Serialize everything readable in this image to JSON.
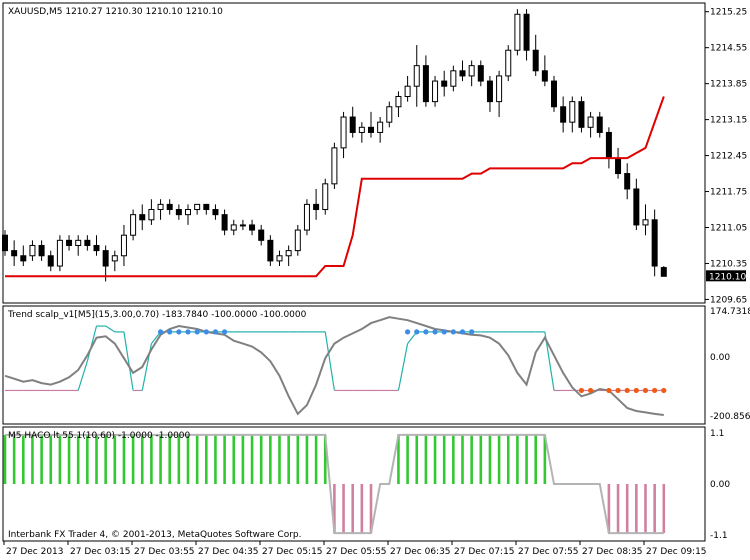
{
  "colors": {
    "background": "#ffffff",
    "border": "#000000",
    "candle": "#000000",
    "supertrend": "#e00000",
    "scalp_line": "#808080",
    "scalp_up": "#20b2aa",
    "scalp_down": "#c77da0",
    "dot_up": "#3c8ce8",
    "dot_down": "#f05a14",
    "hist_up": "#32c832",
    "hist_down": "#d080a0",
    "hist_flat": "#b4b4b4"
  },
  "main": {
    "title": "XAUUSD,M5  1210.27 1210.30 1210.10 1210.10",
    "price_labels": [
      "1215.25",
      "1214.55",
      "1213.85",
      "1213.15",
      "1212.45",
      "1211.75",
      "1211.05",
      "1210.35",
      "1209.65"
    ],
    "current_price": "1210.10"
  },
  "scalp": {
    "title": "Trend scalp_v1[M5](15,3.00,0.70) -183.7840 -100.0000 -100.0000",
    "axis_labels": [
      "174.7318",
      "0.00",
      "-200.8562"
    ]
  },
  "haco": {
    "title": "M5 HACO lt 55.1(10,60) -1.0000 -1.0000",
    "axis_labels": [
      "1.1",
      "0.00",
      "-1.1"
    ],
    "copyright": "Interbank FX Trader 4, © 2001-2013, MetaQuotes Software Corp."
  },
  "time_labels": [
    "27 Dec 2013",
    "27 Dec 03:15",
    "27 Dec 03:55",
    "27 Dec 04:35",
    "27 Dec 05:15",
    "27 Dec 05:55",
    "27 Dec 06:35",
    "27 Dec 07:15",
    "27 Dec 07:55",
    "27 Dec 08:35",
    "27 Dec 09:15"
  ],
  "chart_data": [
    {
      "type": "candlestick",
      "symbol": "XAUUSD",
      "timeframe": "M5",
      "ylim": [
        1209.6,
        1215.4
      ],
      "ohlc": [
        [
          1210.9,
          1211.0,
          1210.5,
          1210.6
        ],
        [
          1210.6,
          1210.8,
          1210.3,
          1210.5
        ],
        [
          1210.5,
          1210.7,
          1210.3,
          1210.4
        ],
        [
          1210.5,
          1210.8,
          1210.4,
          1210.7
        ],
        [
          1210.7,
          1210.8,
          1210.4,
          1210.5
        ],
        [
          1210.5,
          1210.6,
          1210.2,
          1210.3
        ],
        [
          1210.3,
          1210.9,
          1210.2,
          1210.8
        ],
        [
          1210.8,
          1210.9,
          1210.6,
          1210.7
        ],
        [
          1210.7,
          1210.9,
          1210.5,
          1210.8
        ],
        [
          1210.8,
          1210.9,
          1210.6,
          1210.7
        ],
        [
          1210.7,
          1210.9,
          1210.5,
          1210.6
        ],
        [
          1210.6,
          1210.7,
          1210.0,
          1210.3
        ],
        [
          1210.4,
          1210.6,
          1210.2,
          1210.5
        ],
        [
          1210.5,
          1211.1,
          1210.3,
          1210.9
        ],
        [
          1210.9,
          1211.4,
          1210.8,
          1211.3
        ],
        [
          1211.3,
          1211.5,
          1211.0,
          1211.2
        ],
        [
          1211.2,
          1211.6,
          1211.1,
          1211.4
        ],
        [
          1211.4,
          1211.6,
          1211.2,
          1211.5
        ],
        [
          1211.5,
          1211.6,
          1211.3,
          1211.4
        ],
        [
          1211.4,
          1211.5,
          1211.2,
          1211.3
        ],
        [
          1211.3,
          1211.5,
          1211.1,
          1211.4
        ],
        [
          1211.4,
          1211.5,
          1211.3,
          1211.5
        ],
        [
          1211.5,
          1211.5,
          1211.3,
          1211.4
        ],
        [
          1211.4,
          1211.5,
          1211.2,
          1211.3
        ],
        [
          1211.3,
          1211.4,
          1210.9,
          1211.0
        ],
        [
          1211.0,
          1211.2,
          1210.9,
          1211.1
        ],
        [
          1211.1,
          1211.2,
          1211.0,
          1211.1
        ],
        [
          1211.1,
          1211.2,
          1210.9,
          1211.0
        ],
        [
          1211.0,
          1211.1,
          1210.7,
          1210.8
        ],
        [
          1210.8,
          1210.9,
          1210.3,
          1210.4
        ],
        [
          1210.4,
          1210.6,
          1210.3,
          1210.5
        ],
        [
          1210.5,
          1210.7,
          1210.3,
          1210.6
        ],
        [
          1210.6,
          1211.1,
          1210.5,
          1211.0
        ],
        [
          1211.0,
          1211.6,
          1210.9,
          1211.5
        ],
        [
          1211.5,
          1211.8,
          1211.2,
          1211.4
        ],
        [
          1211.4,
          1212.0,
          1211.3,
          1211.9
        ],
        [
          1211.9,
          1212.7,
          1211.8,
          1212.6
        ],
        [
          1212.6,
          1213.3,
          1212.4,
          1213.2
        ],
        [
          1213.2,
          1213.4,
          1212.8,
          1212.9
        ],
        [
          1212.9,
          1213.1,
          1212.7,
          1213.0
        ],
        [
          1213.0,
          1213.3,
          1212.8,
          1212.9
        ],
        [
          1212.9,
          1213.2,
          1212.7,
          1213.1
        ],
        [
          1213.1,
          1213.5,
          1213.0,
          1213.4
        ],
        [
          1213.4,
          1213.7,
          1213.2,
          1213.6
        ],
        [
          1213.6,
          1214.0,
          1213.5,
          1213.8
        ],
        [
          1213.8,
          1214.6,
          1213.4,
          1214.2
        ],
        [
          1214.2,
          1214.4,
          1213.4,
          1213.5
        ],
        [
          1213.5,
          1214.0,
          1213.4,
          1213.9
        ],
        [
          1213.9,
          1214.1,
          1213.6,
          1213.8
        ],
        [
          1213.8,
          1214.2,
          1213.7,
          1214.1
        ],
        [
          1214.1,
          1214.3,
          1213.9,
          1214.0
        ],
        [
          1214.0,
          1214.3,
          1213.8,
          1214.2
        ],
        [
          1214.2,
          1214.3,
          1213.8,
          1213.9
        ],
        [
          1213.9,
          1214.0,
          1213.3,
          1213.5
        ],
        [
          1213.5,
          1214.1,
          1213.2,
          1214.0
        ],
        [
          1214.0,
          1214.6,
          1213.9,
          1214.5
        ],
        [
          1214.5,
          1215.3,
          1214.4,
          1215.2
        ],
        [
          1215.2,
          1215.3,
          1214.3,
          1214.5
        ],
        [
          1214.5,
          1214.8,
          1214.0,
          1214.1
        ],
        [
          1214.1,
          1214.4,
          1213.8,
          1213.9
        ],
        [
          1213.9,
          1214.0,
          1213.3,
          1213.4
        ],
        [
          1213.4,
          1213.6,
          1212.9,
          1213.1
        ],
        [
          1213.1,
          1213.6,
          1212.9,
          1213.5
        ],
        [
          1213.5,
          1213.6,
          1212.9,
          1213.0
        ],
        [
          1213.0,
          1213.3,
          1212.8,
          1213.2
        ],
        [
          1213.2,
          1213.3,
          1212.8,
          1212.9
        ],
        [
          1212.9,
          1213.0,
          1212.2,
          1212.4
        ],
        [
          1212.4,
          1212.6,
          1212.0,
          1212.1
        ],
        [
          1212.1,
          1212.3,
          1211.6,
          1211.8
        ],
        [
          1211.8,
          1212.0,
          1211.0,
          1211.1
        ],
        [
          1211.1,
          1211.5,
          1210.9,
          1211.2
        ],
        [
          1211.2,
          1211.4,
          1210.1,
          1210.3
        ],
        [
          1210.27,
          1210.3,
          1210.1,
          1210.1
        ]
      ],
      "supertrend": [
        1210.1,
        1210.1,
        1210.1,
        1210.1,
        1210.1,
        1210.1,
        1210.1,
        1210.1,
        1210.1,
        1210.1,
        1210.1,
        1210.1,
        1210.1,
        1210.1,
        1210.1,
        1210.1,
        1210.1,
        1210.1,
        1210.1,
        1210.1,
        1210.1,
        1210.1,
        1210.1,
        1210.1,
        1210.1,
        1210.1,
        1210.1,
        1210.1,
        1210.1,
        1210.1,
        1210.1,
        1210.1,
        1210.1,
        1210.1,
        1210.1,
        1210.3,
        1210.3,
        1210.3,
        1210.9,
        1212.0,
        1212.0,
        1212.0,
        1212.0,
        1212.0,
        1212.0,
        1212.0,
        1212.0,
        1212.0,
        1212.0,
        1212.0,
        1212.0,
        1212.1,
        1212.1,
        1212.2,
        1212.2,
        1212.2,
        1212.2,
        1212.2,
        1212.2,
        1212.2,
        1212.2,
        1212.2,
        1212.3,
        1212.3,
        1212.4,
        1212.4,
        1212.4,
        1212.4,
        1212.4,
        1212.5,
        1212.6,
        1213.1,
        1213.6
      ]
    },
    {
      "type": "line",
      "name": "Trend scalp_v1",
      "ylim": [
        -200.8562,
        174.7318
      ],
      "values": [
        -100,
        -100,
        -100,
        -100,
        -100,
        -100,
        -100,
        -100,
        -100,
        0,
        120,
        120,
        100,
        100,
        -100,
        -100,
        60,
        100,
        100,
        100,
        100,
        100,
        100,
        100,
        100,
        100,
        100,
        100,
        100,
        100,
        100,
        100,
        100,
        100,
        100,
        100,
        -100,
        -100,
        -100,
        -100,
        -100,
        -100,
        -100,
        -100,
        60,
        100,
        100,
        100,
        100,
        100,
        100,
        100,
        100,
        100,
        100,
        100,
        100,
        100,
        100,
        100,
        -100,
        -100,
        -100,
        -100,
        -100,
        -100,
        -100,
        -100,
        -100,
        -100,
        -100,
        -100,
        -100
      ],
      "raw": [
        -50,
        -60,
        -70,
        -65,
        -75,
        -80,
        -70,
        -55,
        -30,
        20,
        80,
        85,
        60,
        10,
        -40,
        -20,
        40,
        90,
        110,
        120,
        115,
        110,
        100,
        95,
        90,
        70,
        60,
        50,
        30,
        0,
        -50,
        -120,
        -180,
        -150,
        -80,
        10,
        60,
        80,
        95,
        110,
        130,
        140,
        150,
        145,
        140,
        130,
        120,
        110,
        105,
        100,
        95,
        90,
        88,
        80,
        60,
        20,
        -40,
        -80,
        30,
        80,
        20,
        -40,
        -90,
        -120,
        -110,
        -95,
        -100,
        -130,
        -160,
        -170,
        -175,
        -180,
        -183.784
      ]
    },
    {
      "type": "bar",
      "name": "M5 HACO lt 55.1",
      "ylim": [
        -1.1,
        1.1
      ],
      "values": [
        1,
        1,
        1,
        1,
        1,
        1,
        1,
        1,
        1,
        1,
        1,
        1,
        1,
        1,
        1,
        1,
        1,
        1,
        1,
        1,
        1,
        1,
        1,
        1,
        1,
        1,
        1,
        1,
        1,
        1,
        1,
        1,
        1,
        1,
        1,
        1,
        -1,
        -1,
        -1,
        -1,
        -1,
        0,
        0,
        1,
        1,
        1,
        1,
        1,
        1,
        1,
        1,
        1,
        1,
        1,
        1,
        1,
        1,
        1,
        1,
        1,
        0,
        0,
        0,
        0,
        0,
        0,
        -1,
        -1,
        -1,
        -1,
        -1,
        -1,
        -1
      ]
    }
  ]
}
